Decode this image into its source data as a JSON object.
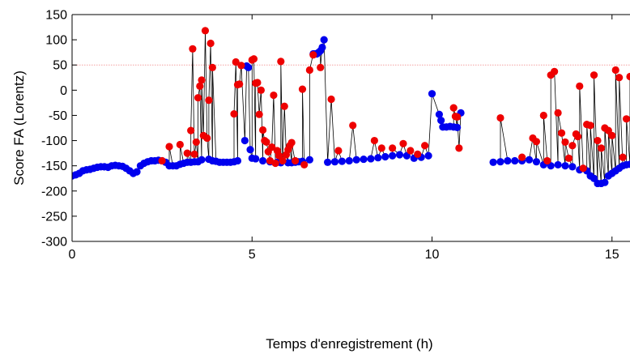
{
  "chart_data": {
    "type": "scatter",
    "xlabel": "Temps d'enregistrement (h)",
    "ylabel": "Score FA (Lorentz)",
    "xlim": [
      0,
      15.5
    ],
    "ylim": [
      -300,
      150
    ],
    "xticks": [
      0,
      5,
      10,
      15
    ],
    "yticks": [
      -300,
      -250,
      -200,
      -150,
      -100,
      -50,
      0,
      50,
      100,
      150
    ],
    "threshold": {
      "y": 50,
      "color": "#f4a0a0",
      "style": "dotted"
    },
    "grid": false,
    "legend": "none",
    "colors": {
      "normal": "#0000ee",
      "af": "#ee0000",
      "line": "#000000"
    },
    "series": [
      {
        "color": "#0000ee",
        "x": [
          0.0,
          0.1,
          0.2,
          0.3,
          0.4,
          0.5,
          0.6,
          0.7,
          0.8,
          0.9,
          1.0,
          1.1,
          1.2,
          1.3,
          1.4,
          1.5,
          1.6,
          1.7,
          1.8,
          1.9,
          2.0,
          2.1,
          2.2,
          2.3,
          2.4,
          2.5,
          2.6,
          2.7,
          2.8,
          2.9,
          3.0,
          3.1,
          3.2,
          3.3,
          3.4,
          3.5,
          3.6,
          3.8,
          3.9,
          4.0,
          4.1,
          4.2,
          4.3,
          4.4,
          4.5,
          4.6,
          4.8,
          4.85,
          4.9,
          4.95,
          5.0,
          5.1,
          5.3,
          5.5,
          5.7,
          5.8,
          6.0,
          6.1,
          6.2,
          6.3,
          6.4,
          6.6,
          6.7,
          6.75,
          6.8,
          6.85,
          6.9,
          6.95,
          7.0,
          7.1,
          7.3,
          7.5,
          7.7,
          7.9,
          8.1,
          8.3,
          8.5,
          8.7,
          8.9,
          9.1,
          9.3,
          9.5,
          9.7,
          9.9,
          10.0,
          10.2,
          10.25,
          10.3,
          10.4,
          10.5,
          10.6,
          10.7,
          10.8,
          11.7,
          11.9,
          12.1,
          12.3,
          12.5,
          12.7,
          12.9,
          13.1,
          13.3,
          13.5,
          13.7,
          13.9,
          14.1,
          14.3,
          14.4,
          14.5,
          14.6,
          14.7,
          14.8,
          14.9,
          15.0,
          15.1,
          15.2,
          15.3,
          15.4,
          15.5
        ],
        "values": [
          -170,
          -168,
          -165,
          -160,
          -158,
          -157,
          -155,
          -153,
          -152,
          -152,
          -153,
          -150,
          -149,
          -150,
          -151,
          -155,
          -160,
          -165,
          -162,
          -150,
          -145,
          -142,
          -140,
          -140,
          -139,
          -140,
          -143,
          -150,
          -150,
          -150,
          -147,
          -145,
          -143,
          -143,
          -142,
          -142,
          -138,
          -137,
          -140,
          -141,
          -143,
          -143,
          -143,
          -143,
          -142,
          -140,
          -100,
          48,
          45,
          -118,
          -135,
          -136,
          -140,
          -142,
          -143,
          -144,
          -144,
          -144,
          -143,
          -142,
          -141,
          -138,
          72,
          72,
          72,
          75,
          78,
          85,
          100,
          -143,
          -142,
          -141,
          -140,
          -138,
          -137,
          -136,
          -134,
          -132,
          -130,
          -128,
          -130,
          -135,
          -133,
          -130,
          -7,
          -48,
          -60,
          -73,
          -73,
          -72,
          -73,
          -74,
          -45,
          -143,
          -142,
          -140,
          -140,
          -140,
          -138,
          -142,
          -148,
          -150,
          -148,
          -150,
          -152,
          -158,
          -160,
          -170,
          -175,
          -185,
          -185,
          -183,
          -170,
          -165,
          -160,
          -155,
          -150,
          -148,
          -147
        ]
      },
      {
        "color": "#ee0000",
        "x": [
          2.5,
          2.7,
          3.0,
          3.2,
          3.3,
          3.35,
          3.4,
          3.45,
          3.5,
          3.55,
          3.6,
          3.65,
          3.7,
          3.75,
          3.8,
          3.85,
          3.9,
          4.5,
          4.55,
          4.6,
          4.65,
          4.7,
          5.0,
          5.05,
          5.1,
          5.15,
          5.2,
          5.25,
          5.3,
          5.35,
          5.4,
          5.45,
          5.5,
          5.55,
          5.6,
          5.65,
          5.7,
          5.75,
          5.8,
          5.85,
          5.9,
          5.95,
          6.0,
          6.05,
          6.1,
          6.2,
          6.4,
          6.45,
          6.6,
          6.7,
          6.9,
          7.2,
          7.4,
          7.8,
          8.4,
          8.6,
          8.9,
          9.2,
          9.4,
          9.6,
          9.8,
          10.6,
          10.65,
          10.7,
          10.75,
          11.9,
          12.5,
          12.8,
          12.9,
          13.1,
          13.2,
          13.3,
          13.4,
          13.5,
          13.6,
          13.7,
          13.8,
          13.9,
          14.0,
          14.05,
          14.1,
          14.2,
          14.3,
          14.4,
          14.5,
          14.6,
          14.7,
          14.8,
          14.9,
          15.0,
          15.1,
          15.2,
          15.3,
          15.4,
          15.5
        ],
        "values": [
          -140,
          -112,
          -108,
          -125,
          -80,
          82,
          -127,
          -103,
          -15,
          8,
          20,
          -90,
          118,
          -95,
          -20,
          93,
          45,
          -47,
          56,
          11,
          12,
          49,
          60,
          62,
          14,
          15,
          -48,
          0,
          -79,
          -100,
          -103,
          -122,
          -140,
          -113,
          -10,
          -145,
          -120,
          -130,
          57,
          -140,
          -32,
          -128,
          -118,
          -110,
          -104,
          -140,
          2,
          -148,
          40,
          70,
          45,
          -18,
          -120,
          -70,
          -100,
          -115,
          -115,
          -106,
          -120,
          -127,
          -110,
          -35,
          -52,
          -53,
          -115,
          -55,
          -133,
          -95,
          -102,
          -50,
          -140,
          30,
          37,
          -45,
          -85,
          -103,
          -135,
          -110,
          -87,
          -92,
          8,
          -155,
          -68,
          -70,
          30,
          -100,
          -115,
          -75,
          -80,
          -90,
          40,
          25,
          -133,
          -57,
          27
        ]
      }
    ]
  }
}
